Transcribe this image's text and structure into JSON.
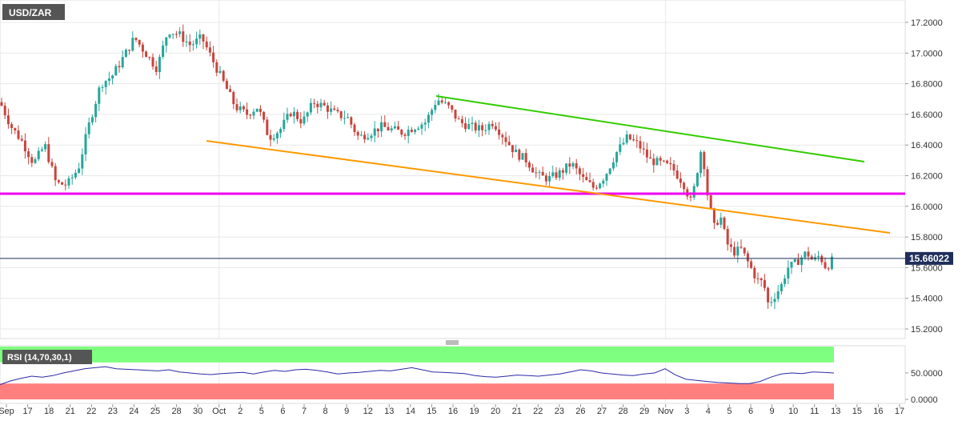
{
  "symbol": "USD/ZAR",
  "last_price_label": "15.66022",
  "rsi_label": "RSI (14,70,30,1)",
  "colors": {
    "up": "#26a69a",
    "down": "#c9443c",
    "grid": "#e8e8e8",
    "overbought_zone": "#7fff7f",
    "oversold_zone": "#ff7f7f",
    "rsi_line": "#2a2aa6",
    "support_line": "#ee00ee",
    "upper_trend": "#33cc00",
    "lower_trend": "#ff9900",
    "last_price_line": "#1f2e5a"
  },
  "chart_data": [
    {
      "type": "candlestick",
      "title": "USD/ZAR",
      "x_tick_labels": [
        "Sep",
        "17",
        "18",
        "21",
        "22",
        "23",
        "24",
        "25",
        "28",
        "30",
        "Oct",
        "2",
        "5",
        "6",
        "7",
        "8",
        "9",
        "12",
        "13",
        "14",
        "15",
        "16",
        "19",
        "20",
        "21",
        "22",
        "23",
        "26",
        "27",
        "28",
        "29",
        "Nov",
        "3",
        "4",
        "5",
        "6",
        "9",
        "10",
        "11",
        "13",
        "15",
        "16",
        "17"
      ],
      "x_major_ticks": [
        "Oct",
        "Nov"
      ],
      "y_tick_labels": [
        "17.2000",
        "17.0000",
        "16.8000",
        "16.6000",
        "16.4000",
        "16.2000",
        "16.0000",
        "15.8000",
        "15.6000",
        "15.4000",
        "15.2000"
      ],
      "ylim": [
        15.13,
        17.35
      ],
      "last_value": 15.66022,
      "path_points": [
        {
          "x": 0,
          "y": 16.68
        },
        {
          "x": 14,
          "y": 16.52
        },
        {
          "x": 28,
          "y": 16.42
        },
        {
          "x": 42,
          "y": 16.28
        },
        {
          "x": 56,
          "y": 16.4
        },
        {
          "x": 70,
          "y": 16.15
        },
        {
          "x": 84,
          "y": 16.14
        },
        {
          "x": 98,
          "y": 16.25
        },
        {
          "x": 112,
          "y": 16.55
        },
        {
          "x": 126,
          "y": 16.8
        },
        {
          "x": 140,
          "y": 16.85
        },
        {
          "x": 155,
          "y": 16.98
        },
        {
          "x": 168,
          "y": 17.1
        },
        {
          "x": 182,
          "y": 17.0
        },
        {
          "x": 196,
          "y": 16.9
        },
        {
          "x": 210,
          "y": 17.15
        },
        {
          "x": 224,
          "y": 17.12
        },
        {
          "x": 238,
          "y": 17.05
        },
        {
          "x": 252,
          "y": 17.1
        },
        {
          "x": 266,
          "y": 16.95
        },
        {
          "x": 280,
          "y": 16.8
        },
        {
          "x": 294,
          "y": 16.65
        },
        {
          "x": 308,
          "y": 16.6
        },
        {
          "x": 322,
          "y": 16.65
        },
        {
          "x": 336,
          "y": 16.45
        },
        {
          "x": 350,
          "y": 16.5
        },
        {
          "x": 364,
          "y": 16.62
        },
        {
          "x": 378,
          "y": 16.55
        },
        {
          "x": 392,
          "y": 16.68
        },
        {
          "x": 406,
          "y": 16.65
        },
        {
          "x": 420,
          "y": 16.6
        },
        {
          "x": 434,
          "y": 16.58
        },
        {
          "x": 448,
          "y": 16.45
        },
        {
          "x": 462,
          "y": 16.48
        },
        {
          "x": 476,
          "y": 16.52
        },
        {
          "x": 490,
          "y": 16.5
        },
        {
          "x": 504,
          "y": 16.48
        },
        {
          "x": 518,
          "y": 16.52
        },
        {
          "x": 532,
          "y": 16.55
        },
        {
          "x": 546,
          "y": 16.7
        },
        {
          "x": 560,
          "y": 16.65
        },
        {
          "x": 574,
          "y": 16.55
        },
        {
          "x": 588,
          "y": 16.52
        },
        {
          "x": 602,
          "y": 16.5
        },
        {
          "x": 616,
          "y": 16.55
        },
        {
          "x": 630,
          "y": 16.45
        },
        {
          "x": 644,
          "y": 16.35
        },
        {
          "x": 658,
          "y": 16.3
        },
        {
          "x": 672,
          "y": 16.2
        },
        {
          "x": 686,
          "y": 16.18
        },
        {
          "x": 700,
          "y": 16.22
        },
        {
          "x": 714,
          "y": 16.28
        },
        {
          "x": 728,
          "y": 16.18
        },
        {
          "x": 742,
          "y": 16.12
        },
        {
          "x": 756,
          "y": 16.2
        },
        {
          "x": 770,
          "y": 16.35
        },
        {
          "x": 784,
          "y": 16.45
        },
        {
          "x": 798,
          "y": 16.4
        },
        {
          "x": 812,
          "y": 16.3
        },
        {
          "x": 826,
          "y": 16.28
        },
        {
          "x": 840,
          "y": 16.25
        },
        {
          "x": 854,
          "y": 16.15
        },
        {
          "x": 864,
          "y": 16.02
        },
        {
          "x": 870,
          "y": 16.2
        },
        {
          "x": 877,
          "y": 16.4
        },
        {
          "x": 884,
          "y": 16.08
        },
        {
          "x": 892,
          "y": 15.86
        },
        {
          "x": 900,
          "y": 15.94
        },
        {
          "x": 908,
          "y": 15.76
        },
        {
          "x": 916,
          "y": 15.7
        },
        {
          "x": 926,
          "y": 15.72
        },
        {
          "x": 936,
          "y": 15.62
        },
        {
          "x": 946,
          "y": 15.52
        },
        {
          "x": 954,
          "y": 15.5
        },
        {
          "x": 960,
          "y": 15.36
        },
        {
          "x": 968,
          "y": 15.42
        },
        {
          "x": 976,
          "y": 15.48
        },
        {
          "x": 984,
          "y": 15.6
        },
        {
          "x": 992,
          "y": 15.62
        },
        {
          "x": 1000,
          "y": 15.66
        },
        {
          "x": 1008,
          "y": 15.7
        },
        {
          "x": 1016,
          "y": 15.64
        },
        {
          "x": 1024,
          "y": 15.68
        },
        {
          "x": 1032,
          "y": 15.6
        },
        {
          "x": 1042,
          "y": 15.66
        }
      ]
    },
    {
      "type": "line",
      "title": "RSI (14,70,30,1)",
      "y_tick_labels": [
        "50.0000",
        "0.0000"
      ],
      "ylim": [
        0,
        100
      ],
      "levels": [
        70,
        30
      ],
      "values": [
        28,
        35,
        40,
        44,
        42,
        45,
        50,
        54,
        58,
        60,
        62,
        58,
        57,
        56,
        55,
        54,
        56,
        52,
        50,
        48,
        47,
        49,
        50,
        51,
        48,
        52,
        55,
        53,
        56,
        57,
        55,
        52,
        48,
        50,
        51,
        53,
        55,
        54,
        57,
        60,
        56,
        52,
        51,
        50,
        49,
        45,
        43,
        42,
        44,
        46,
        45,
        44,
        46,
        48,
        52,
        56,
        54,
        50,
        48,
        46,
        45,
        48,
        50,
        58,
        46,
        38,
        36,
        34,
        32,
        31,
        30,
        30,
        34,
        42,
        48,
        50,
        49,
        52,
        51,
        50
      ]
    }
  ]
}
